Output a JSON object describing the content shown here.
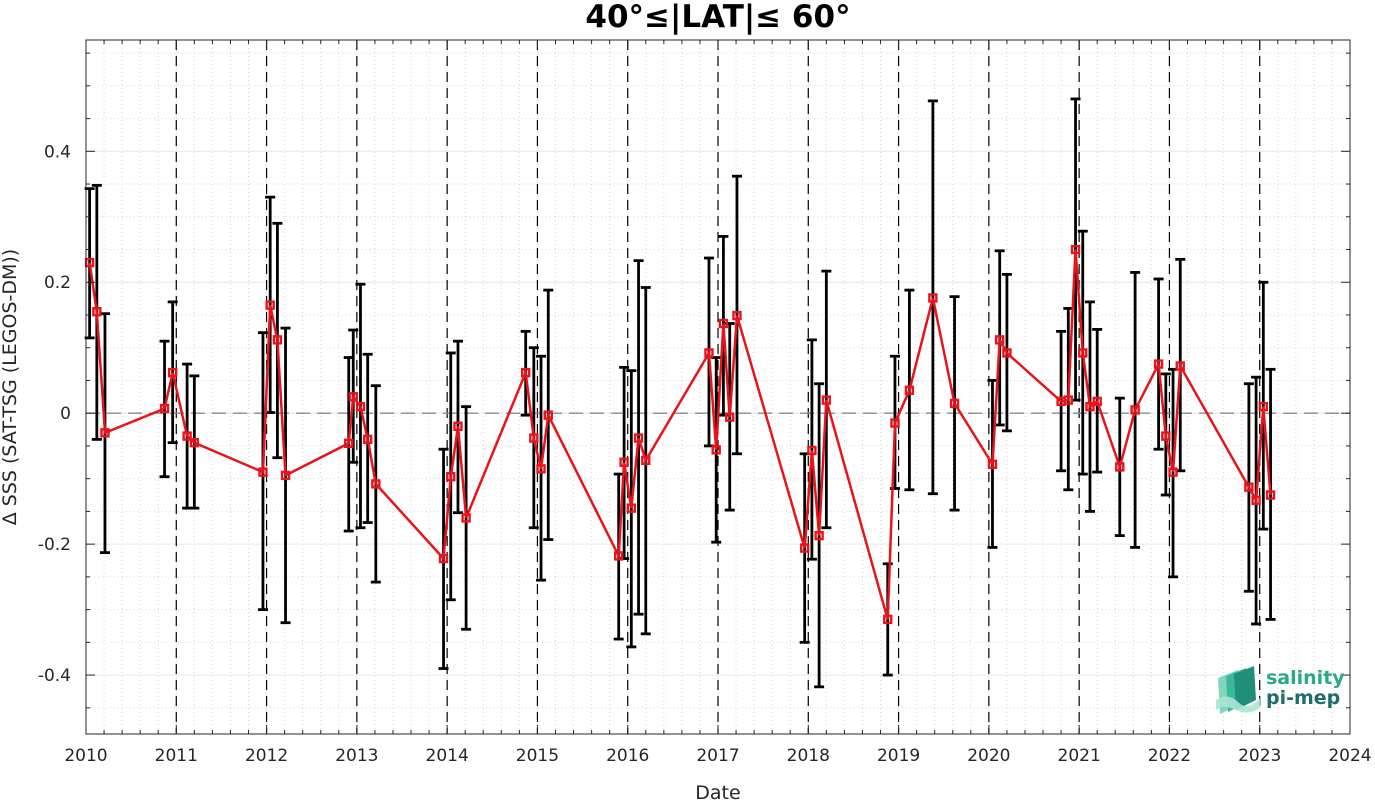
{
  "chart_data": {
    "type": "line",
    "title": "40°≤|LAT|≤ 60°",
    "xlabel": "Date",
    "ylabel": "Δ SSS (SAT-TSG (LEGOS-DM))",
    "xlim": [
      2010,
      2024
    ],
    "ylim": [
      -0.49,
      0.57
    ],
    "x_ticks": [
      2010,
      2011,
      2012,
      2013,
      2014,
      2015,
      2016,
      2017,
      2018,
      2019,
      2020,
      2021,
      2022,
      2023,
      2024
    ],
    "x_tick_labels": [
      "2010",
      "2011",
      "2012",
      "2013",
      "2014",
      "2015",
      "2016",
      "2017",
      "2018",
      "2019",
      "2020",
      "2021",
      "2022",
      "2023",
      "2024"
    ],
    "y_ticks": [
      -0.4,
      -0.2,
      0,
      0.2,
      0.4
    ],
    "y_tick_labels": [
      "-0.4",
      "-0.2",
      "0",
      "0.2",
      "0.4"
    ],
    "grid": true,
    "minor_grid": true,
    "reference_line": 0,
    "year_boundary_lines": [
      2011,
      2012,
      2013,
      2014,
      2015,
      2016,
      2017,
      2018,
      2019,
      2020,
      2021,
      2022,
      2023
    ],
    "series": [
      {
        "marker": "square",
        "color": "#e8141c",
        "errorbar_color": "#000000",
        "x": [
          2010.04,
          2010.12,
          2010.21,
          2010.87,
          2010.96,
          2011.12,
          2011.2,
          2011.96,
          2012.04,
          2012.12,
          2012.21,
          2012.91,
          2012.96,
          2013.04,
          2013.12,
          2013.21,
          2013.96,
          2014.04,
          2014.12,
          2014.21,
          2014.87,
          2014.96,
          2015.04,
          2015.12,
          2015.9,
          2015.96,
          2016.04,
          2016.12,
          2016.2,
          2016.9,
          2016.98,
          2017.06,
          2017.13,
          2017.21,
          2017.96,
          2018.04,
          2018.12,
          2018.2,
          2018.88,
          2018.96,
          2019.12,
          2019.38,
          2019.62,
          2020.04,
          2020.12,
          2020.2,
          2020.8,
          2020.88,
          2020.96,
          2021.04,
          2021.12,
          2021.2,
          2021.45,
          2021.62,
          2021.88,
          2021.96,
          2022.04,
          2022.12,
          2022.88,
          2022.96,
          2023.04,
          2023.12
        ],
        "y": [
          0.23,
          0.155,
          -0.03,
          0.007,
          0.062,
          -0.035,
          -0.045,
          -0.09,
          0.165,
          0.112,
          -0.095,
          -0.046,
          0.025,
          0.01,
          -0.04,
          -0.108,
          -0.222,
          -0.097,
          -0.02,
          -0.16,
          0.062,
          -0.038,
          -0.085,
          -0.003,
          -0.218,
          -0.075,
          -0.145,
          -0.038,
          -0.072,
          0.092,
          -0.056,
          0.137,
          -0.006,
          0.149,
          -0.206,
          -0.057,
          -0.187,
          0.02,
          -0.315,
          -0.015,
          0.035,
          0.176,
          0.015,
          -0.078,
          0.112,
          0.092,
          0.018,
          0.02,
          0.25,
          0.092,
          0.01,
          0.018,
          -0.082,
          0.005,
          0.075,
          -0.035,
          -0.09,
          0.072,
          -0.113,
          -0.133,
          0.01,
          -0.125
        ],
        "y_lower": [
          0.115,
          -0.04,
          -0.213,
          -0.097,
          -0.045,
          -0.145,
          -0.145,
          -0.3,
          0.001,
          -0.068,
          -0.32,
          -0.18,
          -0.075,
          -0.175,
          -0.167,
          -0.258,
          -0.39,
          -0.285,
          -0.152,
          -0.33,
          -0.003,
          -0.175,
          -0.255,
          -0.193,
          -0.345,
          -0.222,
          -0.357,
          -0.307,
          -0.337,
          -0.05,
          -0.197,
          -0.003,
          -0.148,
          -0.062,
          -0.35,
          -0.223,
          -0.418,
          -0.175,
          -0.4,
          -0.115,
          -0.117,
          -0.123,
          -0.148,
          -0.205,
          -0.018,
          -0.027,
          -0.088,
          -0.117,
          0.02,
          -0.093,
          -0.15,
          -0.09,
          -0.187,
          -0.205,
          -0.055,
          -0.125,
          -0.25,
          -0.088,
          -0.272,
          -0.322,
          -0.177,
          -0.315
        ],
        "y_upper": [
          0.343,
          0.348,
          0.152,
          0.11,
          0.17,
          0.075,
          0.057,
          0.123,
          0.33,
          0.29,
          0.13,
          0.085,
          0.127,
          0.197,
          0.09,
          0.042,
          -0.055,
          0.092,
          0.11,
          0.01,
          0.125,
          0.1,
          0.087,
          0.188,
          -0.093,
          0.07,
          0.065,
          0.233,
          0.192,
          0.237,
          0.085,
          0.27,
          0.137,
          0.362,
          -0.062,
          0.112,
          0.045,
          0.217,
          -0.23,
          0.087,
          0.188,
          0.477,
          0.178,
          0.05,
          0.248,
          0.212,
          0.125,
          0.16,
          0.48,
          0.278,
          0.17,
          0.128,
          0.023,
          0.215,
          0.205,
          0.06,
          0.067,
          0.235,
          0.045,
          0.055,
          0.2,
          0.067
        ]
      }
    ]
  },
  "logo": {
    "line1": "salinity",
    "line2": "pi-mep"
  }
}
